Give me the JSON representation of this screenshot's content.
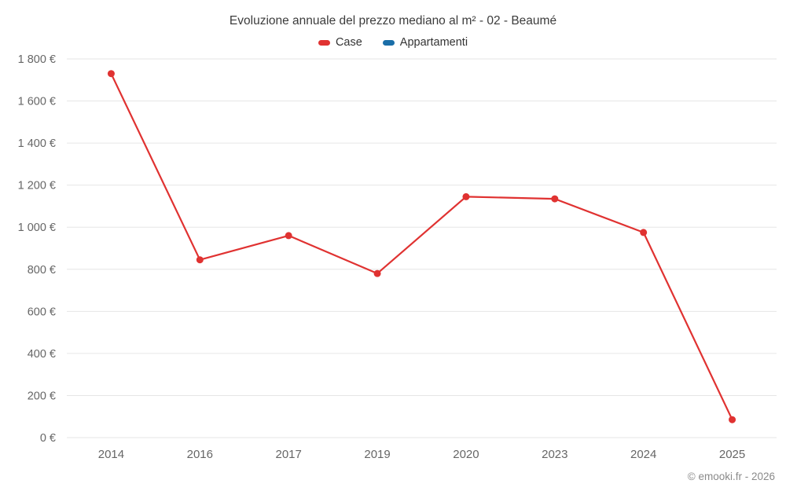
{
  "title": "Evoluzione annuale del prezzo mediano al m² - 02 - Beaumé",
  "legend": [
    {
      "label": "Case",
      "color": "#e03231"
    },
    {
      "label": "Appartamenti",
      "color": "#1a6ea8"
    }
  ],
  "copyright": "© emooki.fr - 2026",
  "chart_data": {
    "type": "line",
    "title": "Evoluzione annuale del prezzo mediano al m² - 02 - Beaumé",
    "categories": [
      "2014",
      "2016",
      "2017",
      "2019",
      "2020",
      "2023",
      "2024",
      "2025"
    ],
    "series": [
      {
        "name": "Case",
        "color": "#e03231",
        "values": [
          1730,
          845,
          960,
          780,
          1145,
          1135,
          975,
          85
        ]
      },
      {
        "name": "Appartamenti",
        "color": "#1a6ea8",
        "values": []
      }
    ],
    "xlabel": "",
    "ylabel": "",
    "ylim": [
      0,
      1800
    ],
    "ytick_step": 200,
    "ytick_suffix": " €",
    "grid": "horizontal",
    "gridline_color": "#e6e6e6",
    "tick_label_color": "#666666",
    "legend_position": "top",
    "marker_radius": 4.5
  }
}
